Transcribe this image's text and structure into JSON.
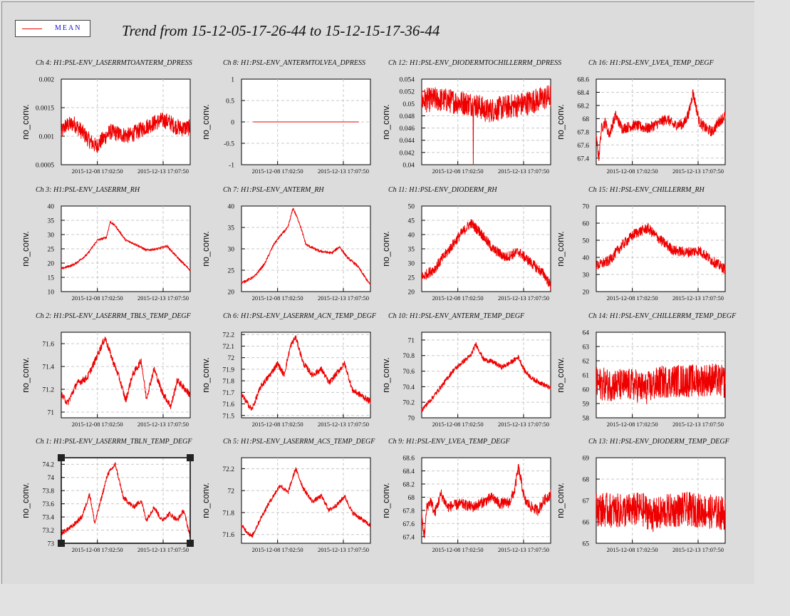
{
  "title": "Trend from 15-12-05-17-26-44 to 15-12-15-17-36-44",
  "legend": {
    "label": "MEAN"
  },
  "colors": {
    "series": "#ee0000",
    "plot_bg": "#ffffff",
    "canvas_bg": "#dcdcdc",
    "legend_text": "#1515c8"
  },
  "chart_data": [
    {
      "type": "line",
      "title": "Ch 4: H1:PSL-ENV_LASERRMTOANTERM_DPRESS",
      "ylabel": "no_conv.",
      "yticks": [
        "0.0005",
        "0.001",
        "0.0015",
        "0.002"
      ],
      "ylim": [
        0.0005,
        0.002
      ],
      "xticks": [
        "2015-12-08 17:02:50",
        "2015-12-13 17:07:50"
      ],
      "grid": true,
      "series": [
        {
          "name": "MEAN",
          "x_norm": [
            0,
            0.03,
            0.06,
            0.1,
            0.16,
            0.22,
            0.27,
            0.32,
            0.38,
            0.46,
            0.53,
            0.6,
            0.67,
            0.72,
            0.78,
            0.83,
            0.88,
            0.93,
            1
          ],
          "y": [
            0.00105,
            0.00118,
            0.0012,
            0.00122,
            0.00108,
            0.00092,
            0.00082,
            0.00094,
            0.00108,
            0.00103,
            0.00101,
            0.00109,
            0.00118,
            0.00123,
            0.00128,
            0.00126,
            0.00118,
            0.00114,
            0.00115
          ],
          "noise": 0.00028
        }
      ]
    },
    {
      "type": "line",
      "title": "Ch 8: H1:PSL-ENV_ANTERMTOLVEA_DPRESS",
      "ylabel": "no_conv.",
      "yticks": [
        "-1",
        "-0.5",
        "0",
        "0.5",
        "1"
      ],
      "ylim": [
        -1,
        1
      ],
      "xticks": [
        "2015-12-08 17:02:50",
        "2015-12-13 17:07:50"
      ],
      "grid": true,
      "series": [
        {
          "name": "MEAN",
          "x_norm": [
            0.09,
            0.91
          ],
          "y": [
            0,
            0
          ],
          "noise": 0
        }
      ]
    },
    {
      "type": "line",
      "title": "Ch 12: H1:PSL-ENV_DIODERMTOCHILLERRM_DPRESS",
      "ylabel": "no_conv.",
      "yticks": [
        "0.04",
        "0.042",
        "0.044",
        "0.046",
        "0.048",
        "0.05",
        "0.052",
        "0.054"
      ],
      "ylim": [
        0.04,
        0.054
      ],
      "xticks": [
        "2015-12-08 17:02:50",
        "2015-12-13 17:07:50"
      ],
      "grid": true,
      "series": [
        {
          "name": "MEAN",
          "x_norm": [
            0,
            0.1,
            0.2,
            0.3,
            0.4,
            0.45,
            0.5,
            0.55,
            0.6,
            0.7,
            0.8,
            0.9,
            1
          ],
          "y": [
            0.0505,
            0.0507,
            0.0505,
            0.0502,
            0.0499,
            0.0495,
            0.0488,
            0.049,
            0.0492,
            0.0496,
            0.05,
            0.0506,
            0.0512
          ],
          "noise": 0.004,
          "spike": {
            "x_norm": 0.4,
            "y": 0.04
          }
        }
      ]
    },
    {
      "type": "line",
      "title": "Ch 16: H1:PSL-ENV_LVEA_TEMP_DEGF",
      "ylabel": "no_conv.",
      "yticks": [
        "67.4",
        "67.6",
        "67.8",
        "68",
        "68.2",
        "68.4",
        "68.6"
      ],
      "ylim": [
        67.3,
        68.6
      ],
      "xticks": [
        "2015-12-08 17:02:50",
        "2015-12-13 17:07:50"
      ],
      "grid": true,
      "series": [
        {
          "name": "MEAN",
          "x_norm": [
            0,
            0.02,
            0.04,
            0.07,
            0.1,
            0.15,
            0.2,
            0.3,
            0.4,
            0.5,
            0.55,
            0.6,
            0.68,
            0.72,
            0.75,
            0.8,
            0.85,
            0.9,
            0.95,
            1
          ],
          "y": [
            67.7,
            67.4,
            67.85,
            67.95,
            67.75,
            68.05,
            67.85,
            67.9,
            67.85,
            67.95,
            68,
            67.9,
            67.92,
            68.1,
            68.4,
            67.95,
            67.85,
            67.8,
            67.95,
            68.05
          ],
          "noise": 0.16
        }
      ]
    },
    {
      "type": "line",
      "title": "Ch 3: H1:PSL-ENV_LASERRM_RH",
      "ylabel": "no_conv.",
      "yticks": [
        "10",
        "15",
        "20",
        "25",
        "30",
        "35",
        "40"
      ],
      "ylim": [
        10,
        40
      ],
      "xticks": [
        "2015-12-08 17:02:50",
        "2015-12-13 17:07:50"
      ],
      "grid": true,
      "series": [
        {
          "name": "MEAN",
          "x_norm": [
            0,
            0.1,
            0.2,
            0.28,
            0.35,
            0.38,
            0.42,
            0.5,
            0.58,
            0.66,
            0.75,
            0.82,
            0.9,
            1
          ],
          "y": [
            18,
            19.5,
            23,
            28,
            29,
            34.5,
            33,
            28,
            26.5,
            24.5,
            25,
            26,
            22,
            17.5
          ],
          "noise": 0.8
        }
      ]
    },
    {
      "type": "line",
      "title": "Ch 7: H1:PSL-ENV_ANTERM_RH",
      "ylabel": "no_conv.",
      "yticks": [
        "20",
        "25",
        "30",
        "35",
        "40"
      ],
      "ylim": [
        20,
        40
      ],
      "xticks": [
        "2015-12-08 17:02:50",
        "2015-12-13 17:07:50"
      ],
      "grid": true,
      "series": [
        {
          "name": "MEAN",
          "x_norm": [
            0,
            0.1,
            0.18,
            0.25,
            0.3,
            0.36,
            0.4,
            0.45,
            0.5,
            0.6,
            0.7,
            0.76,
            0.82,
            0.9,
            1
          ],
          "y": [
            22,
            23.5,
            26.5,
            31,
            33,
            35,
            39.5,
            36,
            31,
            29.5,
            29,
            30.5,
            28,
            26,
            21.5
          ],
          "noise": 0.6
        }
      ]
    },
    {
      "type": "line",
      "title": "Ch 11: H1:PSL-ENV_DIODERM_RH",
      "ylabel": "no_conv.",
      "yticks": [
        "20",
        "25",
        "30",
        "35",
        "40",
        "45",
        "50"
      ],
      "ylim": [
        20,
        50
      ],
      "xticks": [
        "2015-12-08 17:02:50",
        "2015-12-13 17:07:50"
      ],
      "grid": true,
      "series": [
        {
          "name": "MEAN",
          "x_norm": [
            0,
            0.1,
            0.2,
            0.3,
            0.38,
            0.45,
            0.55,
            0.65,
            0.75,
            0.85,
            0.95,
            1
          ],
          "y": [
            25,
            28,
            34,
            40,
            44,
            41,
            35,
            32,
            34,
            30,
            26,
            22
          ],
          "noise": 3.5
        }
      ]
    },
    {
      "type": "line",
      "title": "Ch 15: H1:PSL-ENV_CHILLERRM_RH",
      "ylabel": "no_conv.",
      "yticks": [
        "20",
        "30",
        "40",
        "50",
        "60",
        "70"
      ],
      "ylim": [
        20,
        70
      ],
      "xticks": [
        "2015-12-08 17:02:50",
        "2015-12-13 17:07:50"
      ],
      "grid": true,
      "series": [
        {
          "name": "MEAN",
          "x_norm": [
            0,
            0.1,
            0.2,
            0.3,
            0.4,
            0.5,
            0.6,
            0.7,
            0.8,
            0.9,
            1
          ],
          "y": [
            35,
            38,
            47,
            54,
            57,
            50,
            44,
            43,
            44,
            38,
            33
          ],
          "noise": 6
        }
      ]
    },
    {
      "type": "line",
      "title": "Ch 2: H1:PSL-ENV_LASERRM_TBLS_TEMP_DEGF",
      "ylabel": "no_conv.",
      "yticks": [
        "71",
        "71.2",
        "71.4",
        "71.6"
      ],
      "ylim": [
        70.95,
        71.7
      ],
      "xticks": [
        "2015-12-08 17:02:50",
        "2015-12-13 17:07:50"
      ],
      "grid": true,
      "series": [
        {
          "name": "MEAN",
          "x_norm": [
            0,
            0.05,
            0.12,
            0.2,
            0.25,
            0.3,
            0.34,
            0.4,
            0.45,
            0.5,
            0.55,
            0.62,
            0.66,
            0.72,
            0.78,
            0.85,
            0.9,
            1
          ],
          "y": [
            71.15,
            71.08,
            71.25,
            71.3,
            71.42,
            71.55,
            71.65,
            71.45,
            71.3,
            71.1,
            71.32,
            71.45,
            71.12,
            71.38,
            71.18,
            71.05,
            71.28,
            71.15
          ],
          "noise": 0.06
        }
      ]
    },
    {
      "type": "line",
      "title": "Ch 6: H1:PSL-ENV_LASERRM_ACN_TEMP_DEGF",
      "ylabel": "no_conv.",
      "yticks": [
        "71.5",
        "71.6",
        "71.7",
        "71.8",
        "71.9",
        "72",
        "72.1",
        "72.2"
      ],
      "ylim": [
        71.48,
        72.22
      ],
      "xticks": [
        "2015-12-08 17:02:50",
        "2015-12-13 17:07:50"
      ],
      "grid": true,
      "series": [
        {
          "name": "MEAN",
          "x_norm": [
            0,
            0.08,
            0.15,
            0.22,
            0.28,
            0.33,
            0.38,
            0.42,
            0.48,
            0.55,
            0.62,
            0.68,
            0.75,
            0.8,
            0.86,
            0.92,
            1
          ],
          "y": [
            71.68,
            71.55,
            71.75,
            71.85,
            71.95,
            71.85,
            72.1,
            72.18,
            71.95,
            71.85,
            71.9,
            71.78,
            71.88,
            71.95,
            71.72,
            71.68,
            71.62
          ],
          "noise": 0.05
        }
      ]
    },
    {
      "type": "line",
      "title": "Ch 10: H1:PSL-ENV_ANTERM_TEMP_DEGF",
      "ylabel": "no_conv.",
      "yticks": [
        "70",
        "70.2",
        "70.4",
        "70.6",
        "70.8",
        "71"
      ],
      "ylim": [
        70,
        71.1
      ],
      "xticks": [
        "2015-12-08 17:02:50",
        "2015-12-13 17:07:50"
      ],
      "grid": true,
      "series": [
        {
          "name": "MEAN",
          "x_norm": [
            0,
            0.08,
            0.16,
            0.24,
            0.32,
            0.38,
            0.42,
            0.48,
            0.55,
            0.62,
            0.68,
            0.75,
            0.8,
            0.86,
            0.92,
            1
          ],
          "y": [
            70.1,
            70.25,
            70.42,
            70.6,
            70.72,
            70.8,
            70.95,
            70.75,
            70.72,
            70.65,
            70.7,
            70.78,
            70.6,
            70.5,
            70.45,
            70.38
          ],
          "noise": 0.06
        }
      ]
    },
    {
      "type": "line",
      "title": "Ch 14: H1:PSL-ENV_CHILLERRM_TEMP_DEGF",
      "ylabel": "no_conv.",
      "yticks": [
        "58",
        "59",
        "60",
        "61",
        "62",
        "63",
        "64"
      ],
      "ylim": [
        58,
        64
      ],
      "xticks": [
        "2015-12-08 17:02:50",
        "2015-12-13 17:07:50"
      ],
      "grid": true,
      "series": [
        {
          "name": "MEAN",
          "x_norm": [
            0,
            0.15,
            0.3,
            0.38,
            0.42,
            0.5,
            0.6,
            0.75,
            0.9,
            1
          ],
          "y": [
            60.4,
            60.3,
            60.3,
            60,
            60.2,
            60.5,
            60.6,
            60.6,
            60.7,
            60.5
          ],
          "noise": 2.3
        }
      ]
    },
    {
      "type": "line",
      "title": "Ch 1: H1:PSL-ENV_LASERRM_TBLN_TEMP_DEGF",
      "ylabel": "no_conv.",
      "yticks": [
        "73",
        "73.2",
        "73.4",
        "73.6",
        "73.8",
        "74",
        "74.2"
      ],
      "ylim": [
        73,
        74.3
      ],
      "xticks": [
        "2015-12-08 17:02:50",
        "2015-12-13 17:07:50"
      ],
      "grid": true,
      "series": [
        {
          "name": "MEAN",
          "x_norm": [
            0,
            0.08,
            0.16,
            0.22,
            0.26,
            0.3,
            0.36,
            0.42,
            0.48,
            0.56,
            0.62,
            0.66,
            0.72,
            0.78,
            0.84,
            0.9,
            0.95,
            1
          ],
          "y": [
            73.15,
            73.25,
            73.4,
            73.75,
            73.3,
            73.6,
            74.05,
            74.2,
            73.7,
            73.55,
            73.65,
            73.35,
            73.55,
            73.35,
            73.45,
            73.35,
            73.5,
            73.1
          ],
          "noise": 0.07
        }
      ]
    },
    {
      "type": "line",
      "title": "Ch 5: H1:PSL-ENV_LASERRM_ACS_TEMP_DEGF",
      "ylabel": "no_conv.",
      "yticks": [
        "71.6",
        "71.8",
        "72",
        "72.2"
      ],
      "ylim": [
        71.52,
        72.3
      ],
      "xticks": [
        "2015-12-08 17:02:50",
        "2015-12-13 17:07:50"
      ],
      "grid": true,
      "series": [
        {
          "name": "MEAN",
          "x_norm": [
            0,
            0.08,
            0.15,
            0.22,
            0.3,
            0.36,
            0.42,
            0.48,
            0.55,
            0.62,
            0.68,
            0.75,
            0.8,
            0.86,
            0.92,
            1
          ],
          "y": [
            71.68,
            71.58,
            71.75,
            71.9,
            72.05,
            71.98,
            72.2,
            72.02,
            71.9,
            71.95,
            71.82,
            71.88,
            71.95,
            71.8,
            71.75,
            71.68
          ],
          "noise": 0.04
        }
      ]
    },
    {
      "type": "line",
      "title": "Ch 9: H1:PSL-ENV_LVEA_TEMP_DEGF",
      "ylabel": "no_conv.",
      "yticks": [
        "67.4",
        "67.6",
        "67.8",
        "68",
        "68.2",
        "68.4",
        "68.6"
      ],
      "ylim": [
        67.3,
        68.6
      ],
      "xticks": [
        "2015-12-08 17:02:50",
        "2015-12-13 17:07:50"
      ],
      "grid": true,
      "series": [
        {
          "name": "MEAN",
          "x_norm": [
            0,
            0.02,
            0.04,
            0.07,
            0.1,
            0.15,
            0.2,
            0.3,
            0.4,
            0.5,
            0.55,
            0.6,
            0.68,
            0.72,
            0.75,
            0.8,
            0.85,
            0.9,
            0.95,
            1
          ],
          "y": [
            67.7,
            67.4,
            67.85,
            67.95,
            67.75,
            68.05,
            67.85,
            67.9,
            67.85,
            67.95,
            68,
            67.9,
            67.92,
            68.1,
            68.45,
            67.95,
            67.85,
            67.8,
            67.95,
            68.05
          ],
          "noise": 0.16
        }
      ]
    },
    {
      "type": "line",
      "title": "Ch 13: H1:PSL-ENV_DIODERM_TEMP_DEGF",
      "ylabel": "no_conv.",
      "yticks": [
        "65",
        "66",
        "67",
        "68",
        "69"
      ],
      "ylim": [
        65,
        69
      ],
      "xticks": [
        "2015-12-08 17:02:50",
        "2015-12-13 17:07:50"
      ],
      "grid": true,
      "series": [
        {
          "name": "MEAN",
          "x_norm": [
            0,
            0.2,
            0.35,
            0.45,
            0.55,
            0.7,
            0.85,
            1
          ],
          "y": [
            66.6,
            66.5,
            66.6,
            66.3,
            66.5,
            66.6,
            66.5,
            66.4
          ],
          "noise": 1.6
        }
      ]
    }
  ]
}
